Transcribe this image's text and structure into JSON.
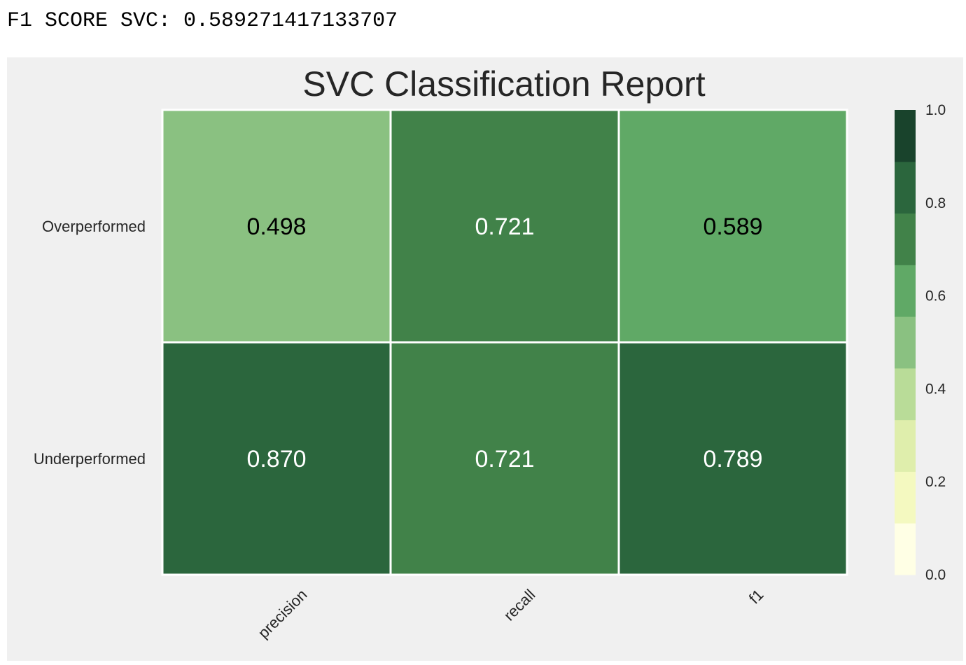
{
  "output_line": "F1 SCORE SVC: 0.589271417133707",
  "chart_data": {
    "type": "heatmap",
    "title": "SVC Classification Report",
    "rows": [
      "Overperformed",
      "Underperformed"
    ],
    "columns": [
      "precision",
      "recall",
      "f1"
    ],
    "values": [
      [
        0.498,
        0.721,
        0.589
      ],
      [
        0.87,
        0.721,
        0.789
      ]
    ],
    "value_labels": [
      [
        "0.498",
        "0.721",
        "0.589"
      ],
      [
        "0.870",
        "0.721",
        "0.789"
      ]
    ],
    "colorbar": {
      "range": [
        0.0,
        1.0
      ],
      "ticks": [
        "0.0",
        "0.2",
        "0.4",
        "0.6",
        "0.8",
        "1.0"
      ],
      "colors": [
        "#ffffe5",
        "#f7fcb9",
        "#d9f0a3",
        "#addd8e",
        "#78c679",
        "#41ab5d",
        "#238443",
        "#006837",
        "#004529"
      ]
    },
    "cell_colors": [
      [
        "#8ac181",
        "#418249",
        "#60a966"
      ],
      [
        "#2b663d",
        "#418249",
        "#2b663d"
      ]
    ],
    "cell_text_colors": [
      [
        "#000000",
        "#ffffff",
        "#000000"
      ],
      [
        "#ffffff",
        "#ffffff",
        "#ffffff"
      ]
    ],
    "colorbar_colors": [
      "#ffffe5",
      "#f4f9c0",
      "#dfeeac",
      "#b9dc98",
      "#8ac181",
      "#60a966",
      "#418249",
      "#2b663d",
      "#19432c"
    ],
    "grid": false
  }
}
